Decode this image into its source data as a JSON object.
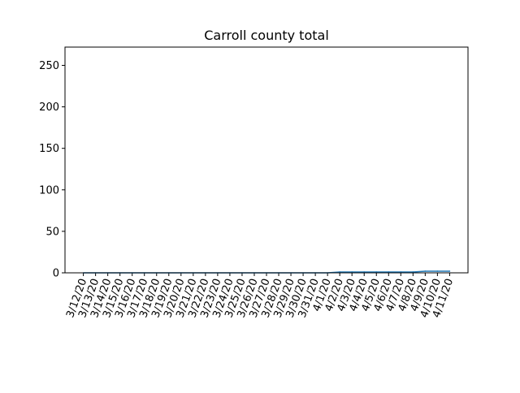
{
  "chart_data": {
    "type": "line",
    "title": "Carroll county total",
    "xlabel": "",
    "ylabel": "",
    "categories": [
      "3/12/20",
      "3/13/20",
      "3/14/20",
      "3/15/20",
      "3/16/20",
      "3/17/20",
      "3/18/20",
      "3/19/20",
      "3/20/20",
      "3/21/20",
      "3/22/20",
      "3/23/20",
      "3/24/20",
      "3/25/20",
      "3/26/20",
      "3/27/20",
      "3/28/20",
      "3/29/20",
      "3/30/20",
      "3/31/20",
      "4/1/20",
      "4/2/20",
      "4/3/20",
      "4/4/20",
      "4/5/20",
      "4/6/20",
      "4/7/20",
      "4/8/20",
      "4/9/20",
      "4/10/20",
      "4/11/20"
    ],
    "series": [
      {
        "name": "Carroll county total",
        "color": "#1f77b4",
        "values": [
          0,
          0,
          0,
          0,
          0,
          0,
          0,
          0,
          0,
          0,
          0,
          0,
          0,
          0,
          0,
          0,
          0,
          0,
          0,
          0,
          0,
          1,
          1,
          1,
          1,
          1,
          1,
          1,
          2,
          2,
          2
        ]
      }
    ],
    "ylim": [
      0,
      272
    ],
    "yticks": [
      0,
      50,
      100,
      150,
      200,
      250
    ],
    "grid": false,
    "legend": "none"
  }
}
